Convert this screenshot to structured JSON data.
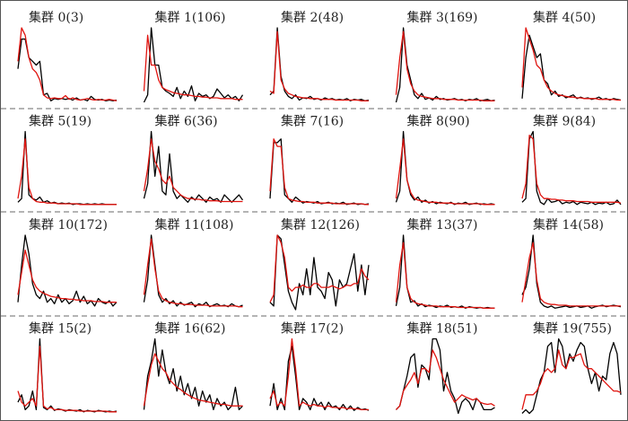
{
  "chart_data": {
    "type": "line",
    "layout": "grid 4 rows x 5 columns of small multiples",
    "series_colors": {
      "cluster": "#000000",
      "centroid": "#e0140f"
    },
    "ylim": [
      0,
      1
    ],
    "panels": [
      {
        "title": "集群 0(3)",
        "black": [
          0.45,
          0.85,
          0.85,
          0.6,
          0.55,
          0.5,
          0.55,
          0.1,
          0.12,
          0.02,
          0.05,
          0.04,
          0.05,
          0.04,
          0.05,
          0.03,
          0.06,
          0.03,
          0.04,
          0.02,
          0.08,
          0.04,
          0.03,
          0.04,
          0.02,
          0.03,
          0.02,
          0.03
        ],
        "red": [
          0.55,
          1,
          0.9,
          0.6,
          0.45,
          0.4,
          0.3,
          0.1,
          0.06,
          0.05,
          0.06,
          0.05,
          0.05,
          0.09,
          0.04,
          0.06,
          0.04,
          0.03,
          0.04,
          0.05,
          0.04,
          0.03,
          0.04,
          0.03,
          0.03,
          0.04,
          0.03,
          0.02
        ]
      },
      {
        "title": "集群 1(106)",
        "black": [
          0,
          0.1,
          1,
          0.5,
          0.5,
          0.2,
          0.15,
          0.12,
          0.08,
          0.2,
          0.05,
          0.15,
          0.08,
          0.22,
          0.02,
          0.12,
          0.08,
          0.1,
          0.05,
          0.08,
          0.18,
          0.12,
          0.06,
          0.1,
          0.05,
          0.08,
          0.02,
          0.1
        ],
        "red": [
          0.15,
          0.9,
          0.5,
          0.5,
          0.3,
          0.2,
          0.17,
          0.15,
          0.13,
          0.12,
          0.11,
          0.1,
          0.1,
          0.09,
          0.08,
          0.08,
          0.07,
          0.07,
          0.06,
          0.06,
          0.06,
          0.05,
          0.05,
          0.05,
          0.05,
          0.04,
          0.04,
          0.04
        ]
      },
      {
        "title": "集群 2(48)",
        "black": [
          0.1,
          0.15,
          1,
          0.35,
          0.15,
          0.08,
          0.05,
          0.1,
          0.03,
          0.06,
          0.05,
          0.08,
          0.04,
          0.05,
          0.03,
          0.06,
          0.04,
          0.05,
          0.03,
          0.04,
          0.03,
          0.05,
          0.02,
          0.04,
          0.03,
          0.04,
          0.02,
          0.03
        ],
        "red": [
          0.15,
          0.12,
          0.95,
          0.3,
          0.18,
          0.12,
          0.1,
          0.08,
          0.07,
          0.06,
          0.06,
          0.05,
          0.05,
          0.05,
          0.04,
          0.04,
          0.04,
          0.04,
          0.03,
          0.03,
          0.03,
          0.03,
          0.03,
          0.03,
          0.03,
          0.02,
          0.02,
          0.02
        ]
      },
      {
        "title": "集群 3(169)",
        "black": [
          0,
          0.2,
          1,
          0.5,
          0.3,
          0.1,
          0.05,
          0.12,
          0.04,
          0.06,
          0.03,
          0.08,
          0.04,
          0.05,
          0.03,
          0.04,
          0.05,
          0.03,
          0.04,
          0.02,
          0.04,
          0.03,
          0.05,
          0.02,
          0.03,
          0.04,
          0.02,
          0.03
        ],
        "red": [
          0.1,
          0.6,
          0.95,
          0.45,
          0.25,
          0.15,
          0.1,
          0.08,
          0.07,
          0.06,
          0.05,
          0.05,
          0.05,
          0.04,
          0.04,
          0.04,
          0.04,
          0.03,
          0.03,
          0.03,
          0.03,
          0.03,
          0.03,
          0.03,
          0.02,
          0.02,
          0.02,
          0.02
        ]
      },
      {
        "title": "集群 4(50)",
        "black": [
          0.05,
          0.6,
          0.9,
          0.75,
          0.6,
          0.65,
          0.3,
          0.25,
          0.1,
          0.15,
          0.08,
          0.1,
          0.06,
          0.08,
          0.1,
          0.05,
          0.07,
          0.05,
          0.06,
          0.04,
          0.05,
          0.07,
          0.04,
          0.05,
          0.03,
          0.05,
          0.04,
          0.03
        ],
        "red": [
          0.2,
          1,
          0.85,
          0.7,
          0.5,
          0.45,
          0.3,
          0.2,
          0.15,
          0.12,
          0.1,
          0.09,
          0.08,
          0.07,
          0.07,
          0.06,
          0.06,
          0.05,
          0.05,
          0.05,
          0.05,
          0.04,
          0.04,
          0.04,
          0.04,
          0.04,
          0.03,
          0.03
        ]
      },
      {
        "title": "集群 5(19)",
        "black": [
          0.05,
          0.1,
          1,
          0.15,
          0.1,
          0.08,
          0.12,
          0.05,
          0.07,
          0.04,
          0.05,
          0.03,
          0.04,
          0.03,
          0.04,
          0.02,
          0.03,
          0.03,
          0.02,
          0.03,
          0.02,
          0.03,
          0.02,
          0.03,
          0.02,
          0.02,
          0.02,
          0.02
        ],
        "red": [
          0.1,
          0.4,
          0.9,
          0.25,
          0.1,
          0.06,
          0.05,
          0.05,
          0.04,
          0.04,
          0.04,
          0.03,
          0.03,
          0.03,
          0.03,
          0.03,
          0.03,
          0.02,
          0.02,
          0.02,
          0.02,
          0.02,
          0.02,
          0.02,
          0.02,
          0.02,
          0.02,
          0.02
        ]
      },
      {
        "title": "集群 6(36)",
        "black": [
          0.1,
          0.3,
          1,
          0.4,
          0.8,
          0.2,
          0.15,
          0.7,
          0.2,
          0.1,
          0.15,
          0.1,
          0.05,
          0.12,
          0.08,
          0.15,
          0.1,
          0.05,
          0.12,
          0.08,
          0.1,
          0.05,
          0.15,
          0.1,
          0.05,
          0.1,
          0.15,
          0.08
        ],
        "red": [
          0.2,
          0.5,
          0.9,
          0.6,
          0.5,
          0.35,
          0.3,
          0.4,
          0.25,
          0.2,
          0.15,
          0.12,
          0.1,
          0.1,
          0.09,
          0.09,
          0.08,
          0.08,
          0.07,
          0.07,
          0.07,
          0.06,
          0.06,
          0.06,
          0.06,
          0.06,
          0.06,
          0.06
        ]
      },
      {
        "title": "集群 7(16)",
        "black": [
          0.1,
          0.85,
          0.85,
          0.9,
          0.15,
          0.1,
          0.05,
          0.12,
          0.08,
          0.04,
          0.06,
          0.05,
          0.04,
          0.06,
          0.03,
          0.04,
          0.05,
          0.03,
          0.04,
          0.03,
          0.05,
          0.02,
          0.03,
          0.04,
          0.02,
          0.03,
          0.02,
          0.03
        ],
        "red": [
          0.2,
          0.9,
          0.8,
          0.8,
          0.25,
          0.1,
          0.08,
          0.07,
          0.06,
          0.06,
          0.05,
          0.05,
          0.05,
          0.04,
          0.04,
          0.04,
          0.04,
          0.04,
          0.03,
          0.03,
          0.03,
          0.03,
          0.03,
          0.03,
          0.03,
          0.03,
          0.02,
          0.02
        ]
      },
      {
        "title": "集群 8(90)",
        "black": [
          0.05,
          0.2,
          1,
          0.35,
          0.15,
          0.08,
          0.12,
          0.05,
          0.08,
          0.04,
          0.06,
          0.03,
          0.05,
          0.04,
          0.03,
          0.05,
          0.02,
          0.04,
          0.03,
          0.05,
          0.02,
          0.03,
          0.04,
          0.02,
          0.03,
          0.02,
          0.03,
          0.02
        ],
        "red": [
          0.1,
          0.5,
          0.9,
          0.35,
          0.18,
          0.1,
          0.08,
          0.07,
          0.06,
          0.05,
          0.05,
          0.05,
          0.04,
          0.04,
          0.04,
          0.04,
          0.03,
          0.03,
          0.03,
          0.03,
          0.03,
          0.03,
          0.03,
          0.03,
          0.02,
          0.02,
          0.02,
          0.02
        ]
      },
      {
        "title": "集群 9(84)",
        "black": [
          0.05,
          0.1,
          0.9,
          1,
          0.2,
          0.05,
          0.02,
          0.1,
          0.05,
          0.06,
          0.08,
          0.03,
          0.05,
          0.04,
          0.06,
          0.02,
          0.05,
          0.04,
          0.03,
          0.05,
          0.02,
          0.04,
          0.03,
          0.05,
          0.02,
          0.03,
          0.08,
          0.02
        ],
        "red": [
          0.1,
          0.3,
          0.95,
          0.9,
          0.3,
          0.15,
          0.1,
          0.1,
          0.09,
          0.09,
          0.08,
          0.08,
          0.07,
          0.07,
          0.07,
          0.06,
          0.06,
          0.06,
          0.06,
          0.05,
          0.05,
          0.05,
          0.05,
          0.05,
          0.05,
          0.05,
          0.05,
          0.04
        ]
      },
      {
        "title": "集群 10(172)",
        "black": [
          0.1,
          0.6,
          1,
          0.75,
          0.35,
          0.2,
          0.15,
          0.25,
          0.1,
          0.15,
          0.08,
          0.2,
          0.1,
          0.15,
          0.08,
          0.12,
          0.25,
          0.1,
          0.18,
          0.08,
          0.12,
          0.05,
          0.15,
          0.1,
          0.08,
          0.12,
          0.05,
          0.1
        ],
        "red": [
          0.2,
          0.5,
          0.8,
          0.6,
          0.4,
          0.3,
          0.25,
          0.22,
          0.2,
          0.18,
          0.17,
          0.16,
          0.15,
          0.15,
          0.14,
          0.14,
          0.13,
          0.13,
          0.12,
          0.12,
          0.12,
          0.11,
          0.11,
          0.11,
          0.1,
          0.1,
          0.1,
          0.1
        ]
      },
      {
        "title": "集群 11(108)",
        "black": [
          0.1,
          0.4,
          1,
          0.6,
          0.2,
          0.1,
          0.15,
          0.08,
          0.12,
          0.05,
          0.1,
          0.06,
          0.08,
          0.1,
          0.04,
          0.08,
          0.06,
          0.1,
          0.04,
          0.06,
          0.08,
          0.05,
          0.06,
          0.04,
          0.08,
          0.05,
          0.04,
          0.06
        ],
        "red": [
          0.2,
          0.6,
          0.95,
          0.55,
          0.25,
          0.15,
          0.12,
          0.1,
          0.09,
          0.08,
          0.08,
          0.07,
          0.07,
          0.07,
          0.06,
          0.06,
          0.06,
          0.06,
          0.05,
          0.05,
          0.05,
          0.05,
          0.05,
          0.05,
          0.05,
          0.05,
          0.04,
          0.04
        ]
      },
      {
        "title": "集群 12(126)",
        "black": [
          0.1,
          0.05,
          1,
          0.95,
          0.6,
          0.25,
          0.1,
          0.0,
          0.35,
          0.2,
          0.55,
          0.2,
          0.7,
          0.3,
          0.25,
          0.15,
          0.5,
          0.4,
          0.05,
          0.4,
          0.3,
          0.35,
          0.55,
          0.75,
          0.25,
          0.6,
          0.2,
          0.6
        ],
        "red": [
          0.1,
          0.2,
          1,
          0.9,
          0.7,
          0.3,
          0.25,
          0.3,
          0.3,
          0.33,
          0.3,
          0.3,
          0.35,
          0.35,
          0.3,
          0.3,
          0.3,
          0.32,
          0.3,
          0.28,
          0.3,
          0.33,
          0.32,
          0.35,
          0.35,
          0.55,
          0.45,
          0.4
        ]
      },
      {
        "title": "集群 13(37)",
        "black": [
          0.05,
          0.3,
          1,
          0.3,
          0.1,
          0.12,
          0.05,
          0.08,
          0.04,
          0.06,
          0.05,
          0.03,
          0.05,
          0.04,
          0.06,
          0.03,
          0.04,
          0.03,
          0.05,
          0.02,
          0.04,
          0.03,
          0.02,
          0.03,
          0.02,
          0.03,
          0.02,
          0.02
        ],
        "red": [
          0.1,
          0.6,
          0.9,
          0.3,
          0.15,
          0.1,
          0.08,
          0.07,
          0.06,
          0.05,
          0.05,
          0.05,
          0.04,
          0.04,
          0.04,
          0.04,
          0.04,
          0.03,
          0.03,
          0.03,
          0.03,
          0.03,
          0.03,
          0.03,
          0.02,
          0.02,
          0.02,
          0.02
        ]
      },
      {
        "title": "集群 14(58)",
        "black": [
          0.2,
          0.3,
          0.55,
          1,
          0.35,
          0.1,
          0.05,
          0.03,
          0.05,
          0.02,
          0.03,
          0.04,
          0.05,
          0.03,
          0.04,
          0.05,
          0.03,
          0.04,
          0.05,
          0.02,
          0.04,
          0.05,
          0.06,
          0.04,
          0.05,
          0.06,
          0.05,
          0.04
        ],
        "red": [
          0.1,
          0.4,
          0.7,
          0.9,
          0.4,
          0.15,
          0.1,
          0.08,
          0.07,
          0.07,
          0.06,
          0.06,
          0.06,
          0.05,
          0.05,
          0.05,
          0.05,
          0.05,
          0.05,
          0.05,
          0.05,
          0.05,
          0.05,
          0.05,
          0.05,
          0.05,
          0.05,
          0.05
        ]
      },
      {
        "title": "集群 15(2)",
        "black": [
          0.15,
          0.25,
          0.05,
          0.1,
          0.3,
          0.05,
          1,
          0.08,
          0.05,
          0.1,
          0.04,
          0.06,
          0.05,
          0.03,
          0.05,
          0.04,
          0.03,
          0.05,
          0.02,
          0.04,
          0.03,
          0.02,
          0.04,
          0.03,
          0.02,
          0.03,
          0.02,
          0.03
        ],
        "red": [
          0.3,
          0.15,
          0.1,
          0.15,
          0.2,
          0.1,
          0.9,
          0.1,
          0.06,
          0.08,
          0.05,
          0.05,
          0.05,
          0.04,
          0.04,
          0.04,
          0.04,
          0.03,
          0.03,
          0.03,
          0.03,
          0.03,
          0.03,
          0.03,
          0.03,
          0.02,
          0.02,
          0.02
        ]
      },
      {
        "title": "集群 16(62)",
        "black": [
          0.05,
          0.5,
          0.7,
          1,
          0.5,
          0.85,
          0.55,
          0.4,
          0.6,
          0.3,
          0.5,
          0.25,
          0.4,
          0.2,
          0.35,
          0.1,
          0.3,
          0.15,
          0.25,
          0.05,
          0.2,
          0.1,
          0.15,
          0.05,
          0.1,
          0.35,
          0.05,
          0.1
        ],
        "red": [
          0.1,
          0.4,
          0.65,
          0.8,
          0.7,
          0.6,
          0.55,
          0.45,
          0.4,
          0.35,
          0.32,
          0.28,
          0.25,
          0.22,
          0.2,
          0.18,
          0.17,
          0.16,
          0.15,
          0.14,
          0.13,
          0.12,
          0.12,
          0.11,
          0.1,
          0.1,
          0.1,
          0.1
        ]
      },
      {
        "title": "集群 17(2)",
        "black": [
          0.1,
          0.4,
          0.05,
          0.2,
          0.05,
          0.7,
          0.9,
          0.5,
          0.05,
          0.2,
          0.15,
          0.05,
          0.2,
          0.1,
          0.15,
          0.05,
          0.15,
          0.08,
          0.1,
          0.05,
          0.12,
          0.05,
          0.1,
          0.04,
          0.08,
          0.05,
          0.06,
          0.04
        ],
        "red": [
          0.2,
          0.3,
          0.1,
          0.15,
          0.1,
          0.5,
          1,
          0.6,
          0.1,
          0.15,
          0.12,
          0.1,
          0.12,
          0.1,
          0.1,
          0.08,
          0.1,
          0.08,
          0.08,
          0.07,
          0.08,
          0.06,
          0.07,
          0.06,
          0.06,
          0.05,
          0.05,
          0.05
        ]
      },
      {
        "title": "集群 18(51)",
        "black": [
          0.05,
          0.1,
          0.3,
          0.5,
          0.75,
          0.8,
          0.35,
          0.65,
          0.6,
          0.45,
          1,
          1,
          0.85,
          0.3,
          0.55,
          0.3,
          0.2,
          0.0,
          0.15,
          0.2,
          0.15,
          0.05,
          0.2,
          0.15,
          0.05,
          0.05,
          0.05,
          0.08
        ],
        "red": [
          0.05,
          0.1,
          0.3,
          0.38,
          0.45,
          0.55,
          0.4,
          0.6,
          0.6,
          0.55,
          0.85,
          0.75,
          0.6,
          0.45,
          0.35,
          0.25,
          0.15,
          0.2,
          0.25,
          0.22,
          0.2,
          0.18,
          0.2,
          0.15,
          0.13,
          0.12,
          0.13,
          0.1
        ]
      },
      {
        "title": "集群 19(755)",
        "black": [
          0.0,
          0.05,
          0.0,
          0.05,
          0.25,
          0.45,
          0.55,
          0.9,
          0.95,
          0.55,
          1,
          0.9,
          0.6,
          0.8,
          0.7,
          0.85,
          0.95,
          0.9,
          0.6,
          0.4,
          0.55,
          0.3,
          0.5,
          0.45,
          0.8,
          0.95,
          0.8,
          0.25
        ],
        "red": [
          0.05,
          0.25,
          0.25,
          0.25,
          0.3,
          0.4,
          0.55,
          0.6,
          0.55,
          0.6,
          0.85,
          0.65,
          0.6,
          0.75,
          0.75,
          0.78,
          0.8,
          0.65,
          0.6,
          0.6,
          0.55,
          0.5,
          0.45,
          0.4,
          0.35,
          0.3,
          0.3,
          0.28
        ]
      }
    ]
  }
}
